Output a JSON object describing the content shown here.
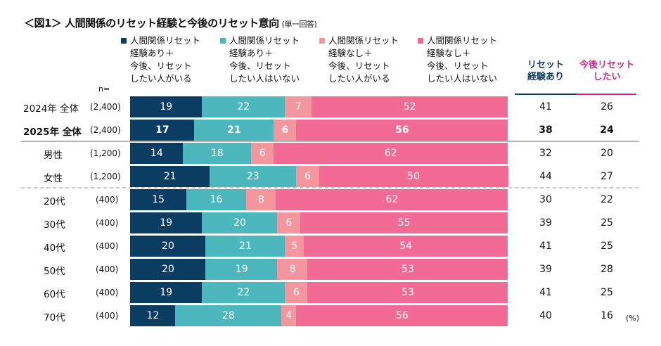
{
  "title": "＜図1＞ 人間関係のリセット経験と今後のリセット意向",
  "subtitle": "(単一回答)",
  "n_label": "n=",
  "unit": "(%)",
  "chart_data": {
    "type": "bar",
    "orientation": "horizontal-stacked-100",
    "series": [
      {
        "name": "人間関係リセット経験あり＋今後、リセットしたい人がいる",
        "legend_lines": [
          "人間関係リセット",
          "経験あり＋",
          "今後、リセット",
          "したい人がいる"
        ],
        "color": "#0b3d63",
        "values": [
          19,
          17,
          14,
          21,
          15,
          19,
          20,
          20,
          19,
          12
        ]
      },
      {
        "name": "人間関係リセット経験あり＋今後、リセットしたい人はいない",
        "legend_lines": [
          "人間関係リセット",
          "経験あり＋",
          "今後、リセット",
          "したい人はいない"
        ],
        "color": "#4cb7bc",
        "values": [
          22,
          21,
          18,
          23,
          16,
          20,
          21,
          19,
          22,
          28
        ]
      },
      {
        "name": "人間関係リセット経験なし＋今後、リセットしたい人がいる",
        "legend_lines": [
          "人間関係リセット",
          "経験なし＋",
          "今後、リセット",
          "したい人がいる"
        ],
        "color": "#f3969d",
        "values": [
          7,
          6,
          6,
          6,
          8,
          6,
          5,
          8,
          6,
          4
        ]
      },
      {
        "name": "人間関係リセット経験なし＋今後、リセットしたい人はいない",
        "legend_lines": [
          "人間関係リセット",
          "経験なし＋",
          "今後、リセット",
          "したい人はいない"
        ],
        "color": "#f26b94",
        "values": [
          52,
          56,
          62,
          50,
          62,
          55,
          54,
          53,
          53,
          56
        ]
      }
    ],
    "categories": [
      "2024年 全体",
      "2025年 全体",
      "男性",
      "女性",
      "20代",
      "30代",
      "40代",
      "50代",
      "60代",
      "70代"
    ],
    "n": [
      "(2,400)",
      "(2,400)",
      "(1,200)",
      "(1,200)",
      "(400)",
      "(400)",
      "(400)",
      "(400)",
      "(400)",
      "(400)"
    ],
    "bold_rows": [
      1
    ],
    "summary_columns": [
      {
        "label_lines": [
          "リセット",
          "経験あり"
        ],
        "color": "#0b3d63",
        "values": [
          41,
          38,
          32,
          44,
          30,
          39,
          41,
          39,
          41,
          40
        ]
      },
      {
        "label_lines": [
          "今後リセット",
          "したい"
        ],
        "color": "#d0288f",
        "values": [
          26,
          24,
          20,
          27,
          22,
          25,
          25,
          28,
          25,
          16
        ]
      }
    ]
  }
}
